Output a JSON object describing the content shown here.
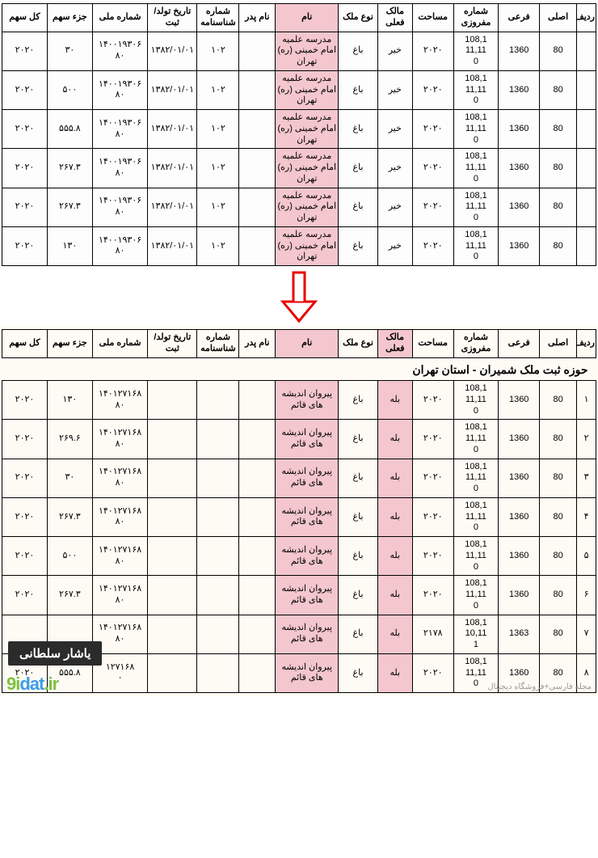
{
  "headers": {
    "row": "ردیف",
    "asli": "اصلی",
    "farei": "فرعی",
    "mafrouzi": "شماره مفروزی",
    "area": "مساحت",
    "currentOwner": "مالک فعلی",
    "propertyType": "نوع ملک",
    "name": "نام",
    "fatherName": "نام پدر",
    "shenasname": "شماره شناسنامه",
    "birth": "تاریخ تولد/ثبت",
    "melli": "شماره ملی",
    "jozSahm": "جزء سهم",
    "kolSahm": "کل سهم"
  },
  "topName": "مدرسه علمیه امام خمینی (ره) تهران",
  "botName": "پیروان اندیشه های قائم",
  "topRows": [
    {
      "asli": "80",
      "farei": "1360",
      "maf": "108,1\n11,11\n0",
      "area": "۲۰۲۰",
      "owner": "خیر",
      "type": "باغ",
      "shen": "۱۰۲",
      "birth": "۱۳۸۲/۰۱/۰۱",
      "melli": "۱۴۰۰۱۹۳۰۶\n۸۰",
      "joz": "۳۰",
      "kol": "۲۰۲۰"
    },
    {
      "asli": "80",
      "farei": "1360",
      "maf": "108,1\n11,11\n0",
      "area": "۲۰۲۰",
      "owner": "خیر",
      "type": "باغ",
      "shen": "۱۰۲",
      "birth": "۱۳۸۲/۰۱/۰۱",
      "melli": "۱۴۰۰۱۹۳۰۶\n۸۰",
      "joz": "۵۰۰",
      "kol": "۲۰۲۰"
    },
    {
      "asli": "80",
      "farei": "1360",
      "maf": "108,1\n11,11\n0",
      "area": "۲۰۲۰",
      "owner": "خیر",
      "type": "باغ",
      "shen": "۱۰۲",
      "birth": "۱۳۸۲/۰۱/۰۱",
      "melli": "۱۴۰۰۱۹۳۰۶\n۸۰",
      "joz": "۵۵۵.۸",
      "kol": "۲۰۲۰"
    },
    {
      "asli": "80",
      "farei": "1360",
      "maf": "108,1\n11,11\n0",
      "area": "۲۰۲۰",
      "owner": "خیر",
      "type": "باغ",
      "shen": "۱۰۲",
      "birth": "۱۳۸۲/۰۱/۰۱",
      "melli": "۱۴۰۰۱۹۳۰۶\n۸۰",
      "joz": "۲۶۷.۳",
      "kol": "۲۰۲۰"
    },
    {
      "asli": "80",
      "farei": "1360",
      "maf": "108,1\n11,11\n0",
      "area": "۲۰۲۰",
      "owner": "خیر",
      "type": "باغ",
      "shen": "۱۰۲",
      "birth": "۱۳۸۲/۰۱/۰۱",
      "melli": "۱۴۰۰۱۹۳۰۶\n۸۰",
      "joz": "۲۶۷.۳",
      "kol": "۲۰۲۰"
    },
    {
      "asli": "80",
      "farei": "1360",
      "maf": "108,1\n11,11\n0",
      "area": "۲۰۲۰",
      "owner": "خیر",
      "type": "باغ",
      "shen": "۱۰۲",
      "birth": "۱۳۸۲/۰۱/۰۱",
      "melli": "۱۴۰۰۱۹۳۰۶\n۸۰",
      "joz": "۱۳۰",
      "kol": "۲۰۲۰"
    }
  ],
  "botTitle": "حوزه ثبت ملک شمیران - استان تهران",
  "botRows": [
    {
      "row": "۱",
      "asli": "80",
      "farei": "1360",
      "maf": "108,1\n11,11\n0",
      "area": "۲۰۲۰",
      "owner": "بله",
      "type": "باغ",
      "melli": "۱۴۰۱۲۷۱۶۸\n۸۰",
      "joz": "۱۳۰",
      "kol": "۲۰۲۰"
    },
    {
      "row": "۲",
      "asli": "80",
      "farei": "1360",
      "maf": "108,1\n11,11\n0",
      "area": "۲۰۲۰",
      "owner": "بله",
      "type": "باغ",
      "melli": "۱۴۰۱۲۷۱۶۸\n۸۰",
      "joz": "۲۶۹.۶",
      "kol": "۲۰۲۰"
    },
    {
      "row": "۳",
      "asli": "80",
      "farei": "1360",
      "maf": "108,1\n11,11\n0",
      "area": "۲۰۲۰",
      "owner": "بله",
      "type": "باغ",
      "melli": "۱۴۰۱۲۷۱۶۸\n۸۰",
      "joz": "۳۰",
      "kol": "۲۰۲۰"
    },
    {
      "row": "۴",
      "asli": "80",
      "farei": "1360",
      "maf": "108,1\n11,11\n0",
      "area": "۲۰۲۰",
      "owner": "بله",
      "type": "باغ",
      "melli": "۱۴۰۱۲۷۱۶۸\n۸۰",
      "joz": "۲۶۷.۳",
      "kol": "۲۰۲۰"
    },
    {
      "row": "۵",
      "asli": "80",
      "farei": "1360",
      "maf": "108,1\n11,11\n0",
      "area": "۲۰۲۰",
      "owner": "بله",
      "type": "باغ",
      "melli": "۱۴۰۱۲۷۱۶۸\n۸۰",
      "joz": "۵۰۰",
      "kol": "۲۰۲۰"
    },
    {
      "row": "۶",
      "asli": "80",
      "farei": "1360",
      "maf": "108,1\n11,11\n0",
      "area": "۲۰۲۰",
      "owner": "بله",
      "type": "باغ",
      "melli": "۱۴۰۱۲۷۱۶۸\n۸۰",
      "joz": "۲۶۷.۳",
      "kol": "۲۰۲۰"
    },
    {
      "row": "۷",
      "asli": "80",
      "farei": "1363",
      "maf": "108,1\n10,11\n1",
      "area": "۲۱۷۸",
      "owner": "بله",
      "type": "باغ",
      "melli": "۱۴۰۱۲۷۱۶۸\n۸۰",
      "joz": "",
      "kol": ""
    },
    {
      "row": "۸",
      "asli": "80",
      "farei": "1360",
      "maf": "108,1\n11,11\n0",
      "area": "۲۰۲۰",
      "owner": "بله",
      "type": "باغ",
      "melli": "۱۲۷۱۶۸\n۰",
      "joz": "۵۵۵.۸",
      "kol": "۲۰۲۰"
    }
  ],
  "badge": "یاشار سلطانی",
  "logo1": "9i",
  "logo2": "dat",
  "footer": "مجله فارسی+فروشگاه دیجیتال"
}
